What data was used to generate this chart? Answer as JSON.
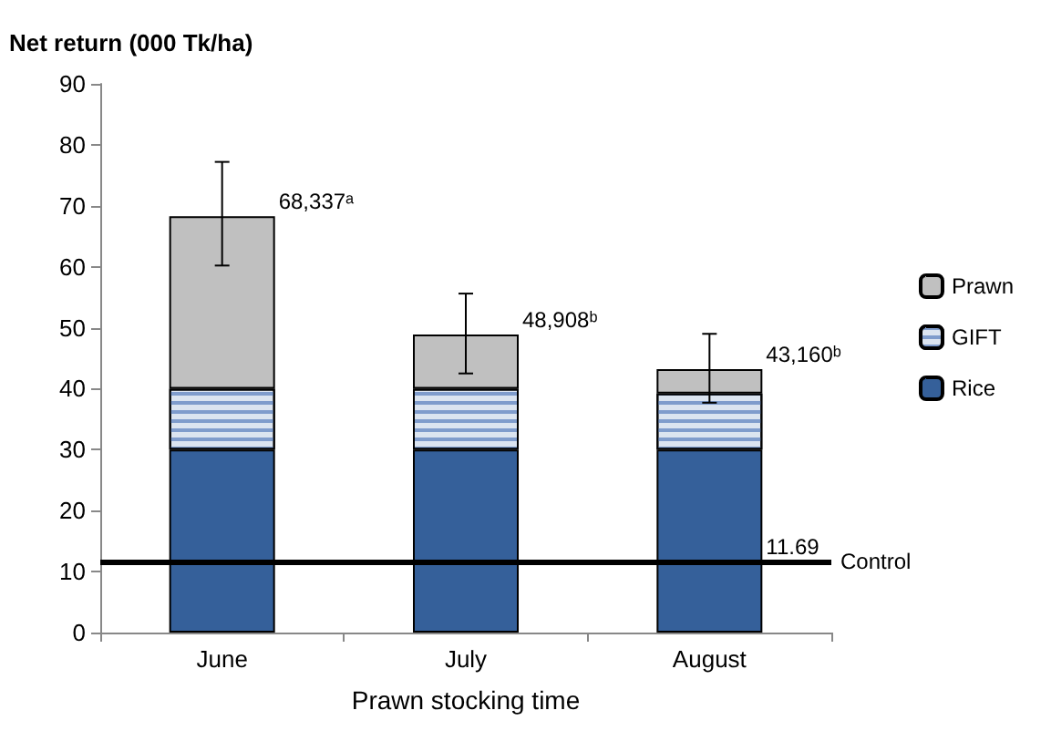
{
  "chart_data": {
    "type": "bar",
    "stacked": true,
    "ylabel": "Net return (000 Tk/ha)",
    "xlabel": "Prawn stocking time",
    "categories": [
      "June",
      "July",
      "August"
    ],
    "series": [
      {
        "name": "Rice",
        "color": "#35609a",
        "values": [
          30,
          30,
          30
        ]
      },
      {
        "name": "GIFT",
        "color": "#dbe4f0",
        "values": [
          10,
          10,
          9.2
        ]
      },
      {
        "name": "Prawn",
        "color": "#c0c0c0",
        "values": [
          28.3,
          8.9,
          4.0
        ],
        "errors": [
          [
            60.2,
            77.2
          ],
          [
            42.5,
            55.6
          ],
          [
            37.7,
            49
          ]
        ]
      }
    ],
    "ylim": [
      0,
      90
    ],
    "yticks": [
      0,
      10,
      20,
      30,
      40,
      50,
      60,
      70,
      80,
      90
    ],
    "ref_lines": [
      {
        "axis": "y",
        "value": 11.69,
        "label": "Control",
        "color": "#000000"
      }
    ],
    "annotations": [
      {
        "text": "68,337ᵃ",
        "x": "June",
        "y": 68.3
      },
      {
        "text": "48,908ᵇ",
        "x": "July",
        "y": 48.9
      },
      {
        "text": "43,160ᵇ",
        "x": "August",
        "y": 43.2
      },
      {
        "text": "11.69",
        "x": "August",
        "y": 11.69
      }
    ],
    "grid": false,
    "legend": "right"
  }
}
